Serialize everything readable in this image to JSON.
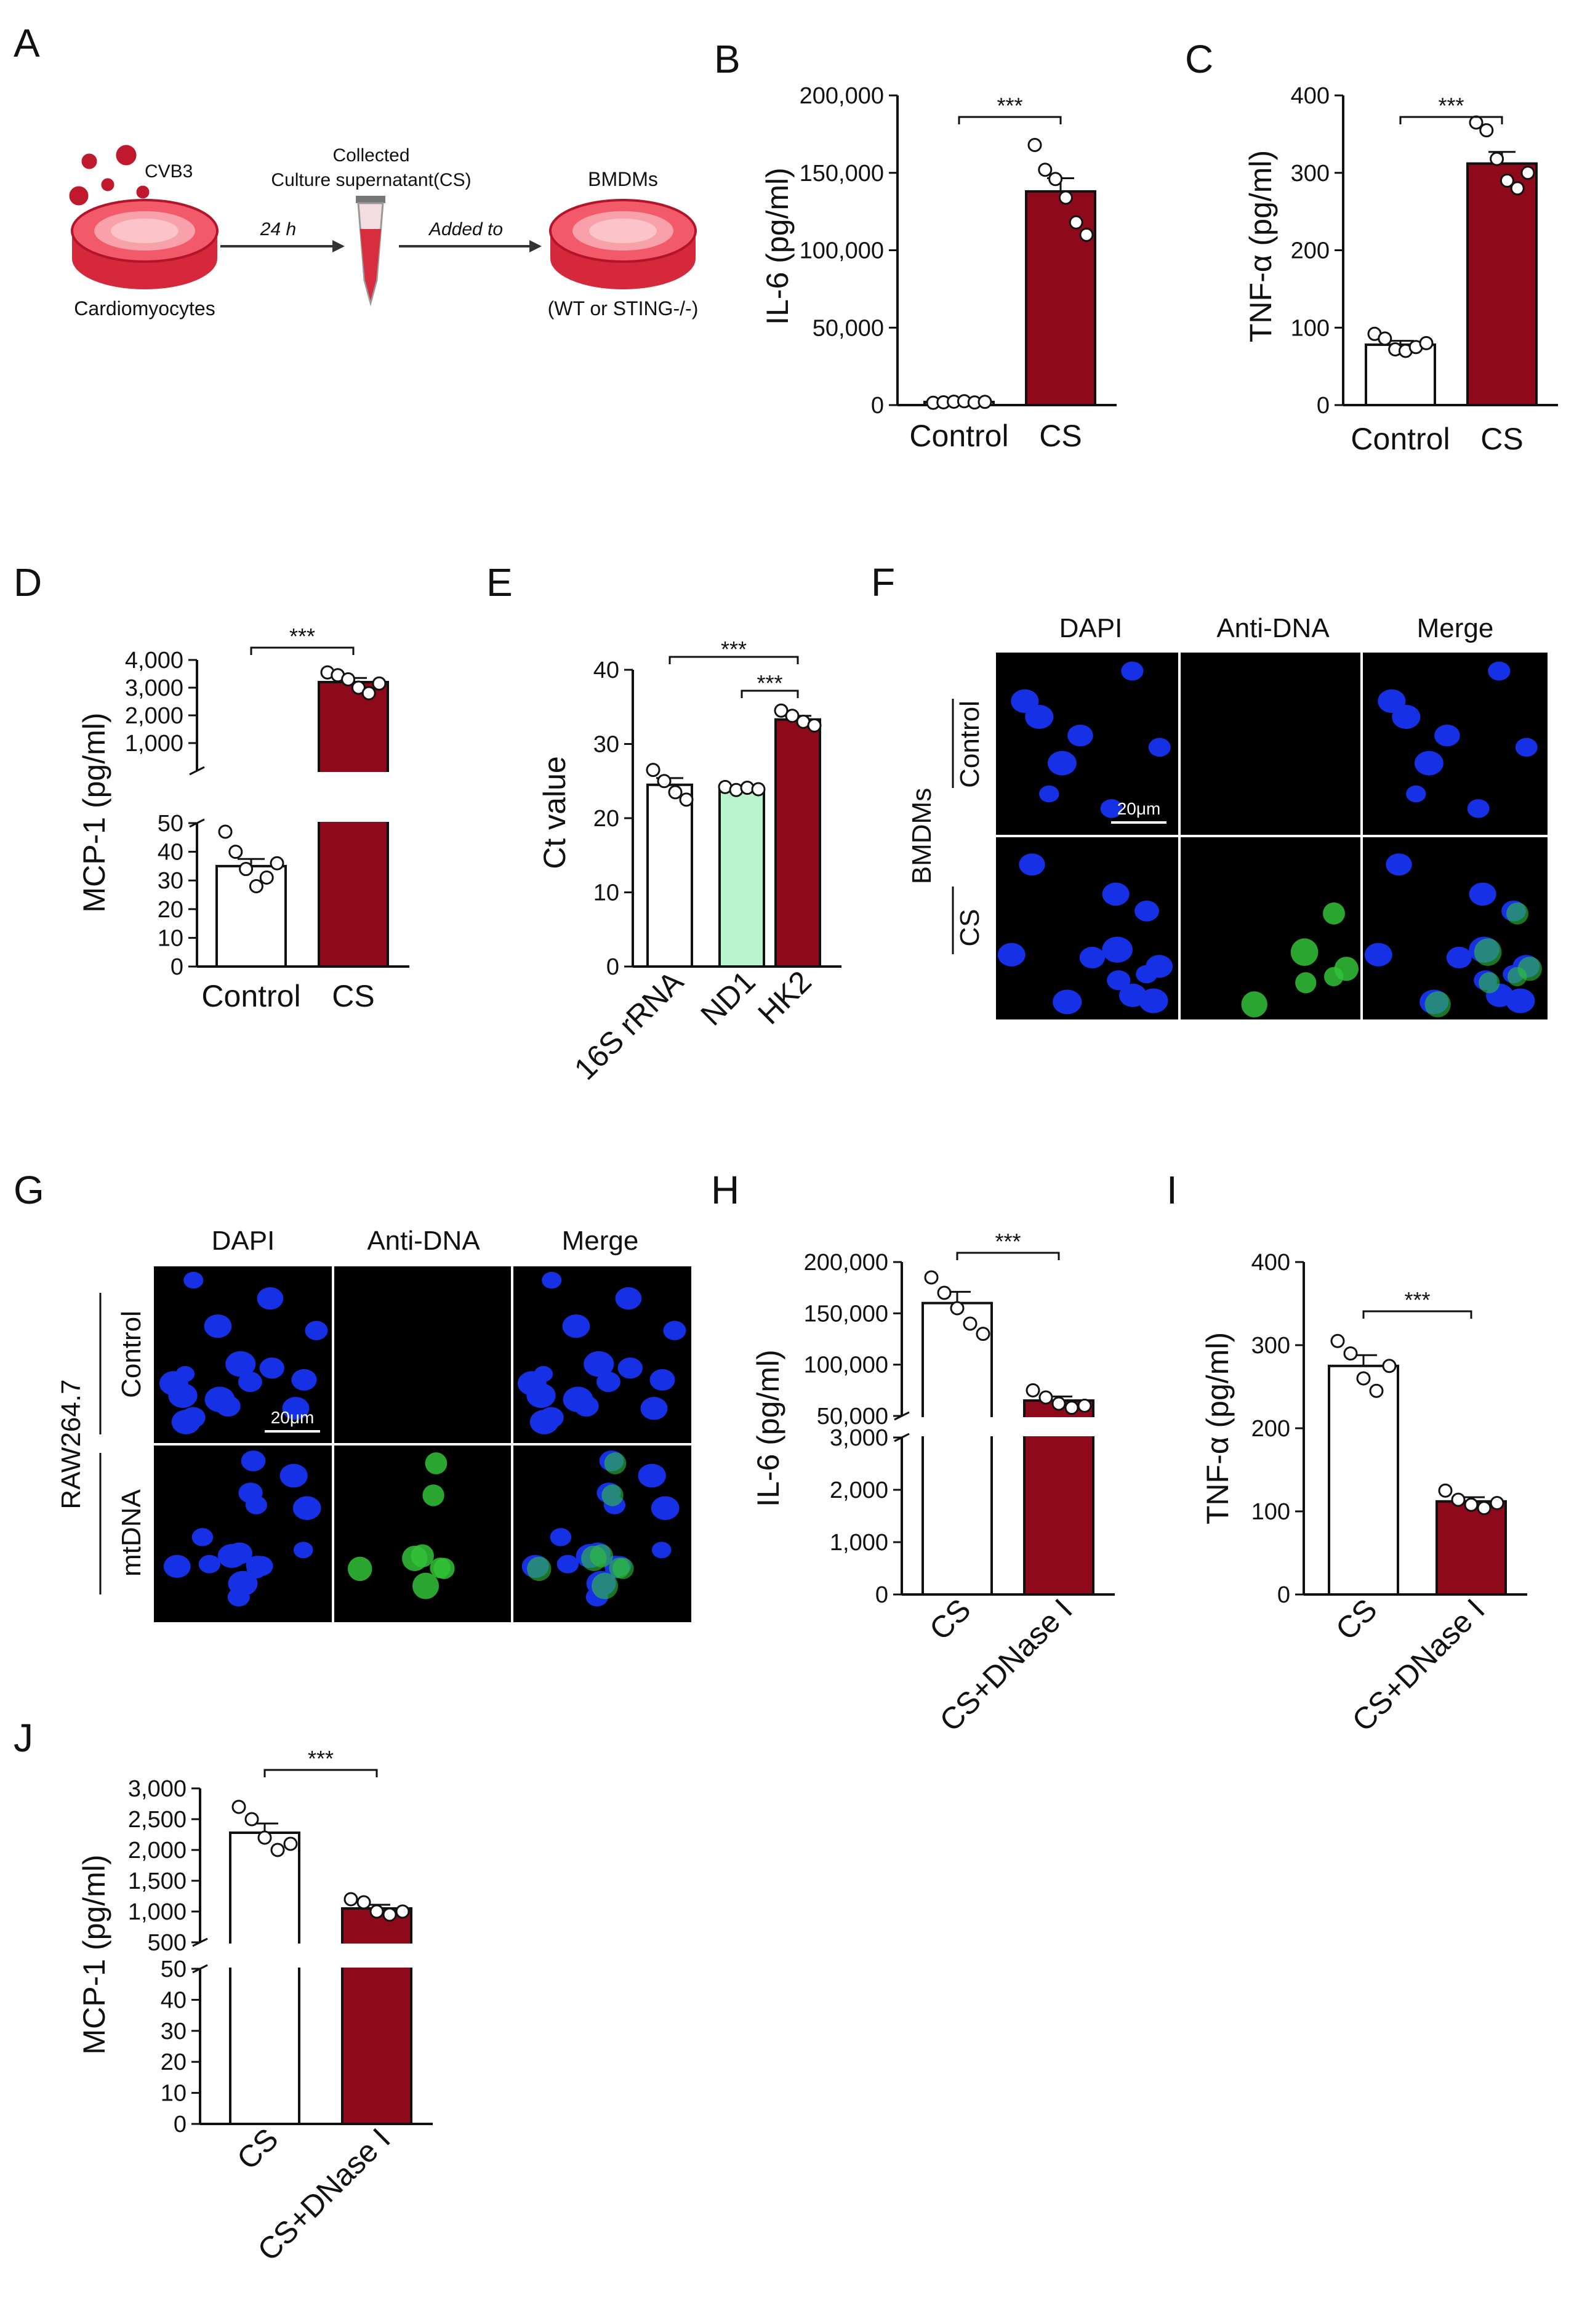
{
  "figure": {
    "colors": {
      "control": "#ffffff",
      "cs": "#8e0a1b",
      "nd1": "#b8f5cf",
      "axis": "#111111",
      "dapi": "#1630e6",
      "antidna": "#31c238",
      "divider": "#ffffff"
    },
    "panel_letters": [
      "A",
      "B",
      "C",
      "D",
      "E",
      "F",
      "G",
      "H",
      "I",
      "J"
    ],
    "schematic": {
      "virus": "CVB3",
      "cardiomyocytes": "Cardiomyocytes",
      "time": "24 h",
      "collected_line1": "Collected",
      "collected_line2": "Culture supernatant(CS)",
      "added": "Added to",
      "bmdms": "BMDMs",
      "genotype": "(WT or STING-/-)"
    },
    "panel_F": {
      "columns": [
        "DAPI",
        "Anti-DNA",
        "Merge"
      ],
      "rows": [
        "Control",
        "CS"
      ],
      "cell_type": "BMDMs",
      "scale": "20μm"
    },
    "panel_G": {
      "columns": [
        "DAPI",
        "Anti-DNA",
        "Merge"
      ],
      "rows": [
        "Control",
        "mtDNA"
      ],
      "cell_type": "RAW264.7",
      "scale": "20μm"
    }
  },
  "chart_data": [
    {
      "panel": "B",
      "type": "bar",
      "ylabel": "IL-6 (pg/ml)",
      "categories": [
        "Control",
        "CS"
      ],
      "values": [
        2000,
        138000
      ],
      "sem": [
        300,
        8500
      ],
      "points": [
        [
          1500,
          1800,
          2200,
          2500,
          1700,
          2100
        ],
        [
          168000,
          152000,
          146000,
          134000,
          118000,
          110000
        ]
      ],
      "ylim": [
        0,
        200000
      ],
      "yticks": [
        0,
        50000,
        100000,
        150000,
        200000
      ],
      "yticklabels": [
        "0",
        "50,000",
        "100,000",
        "150,000",
        "200,000"
      ],
      "significance": [
        {
          "from": 0,
          "to": 1,
          "label": "***"
        }
      ]
    },
    {
      "panel": "C",
      "type": "bar",
      "ylabel": "TNF-α (pg/ml)",
      "categories": [
        "Control",
        "CS"
      ],
      "values": [
        78,
        312
      ],
      "sem": [
        5,
        15
      ],
      "points": [
        [
          92,
          86,
          72,
          70,
          75,
          80
        ],
        [
          365,
          355,
          318,
          290,
          280,
          300
        ]
      ],
      "ylim": [
        0,
        400
      ],
      "yticks": [
        0,
        100,
        200,
        300,
        400
      ],
      "yticklabels": [
        "0",
        "100",
        "200",
        "300",
        "400"
      ],
      "significance": [
        {
          "from": 0,
          "to": 1,
          "label": "***"
        }
      ]
    },
    {
      "panel": "D",
      "type": "bar",
      "ylabel": "MCP-1 (pg/ml)",
      "broken_axis": true,
      "categories": [
        "Control",
        "CS"
      ],
      "values": [
        35,
        3200
      ],
      "sem": [
        2.5,
        150
      ],
      "points": [
        [
          47,
          40,
          34,
          28,
          31,
          36
        ],
        [
          3550,
          3450,
          3300,
          3000,
          2800,
          3150
        ]
      ],
      "lower_ylim": [
        0,
        50
      ],
      "lower_yticks": [
        0,
        10,
        20,
        30,
        40,
        50
      ],
      "upper_ylim": [
        0,
        4000
      ],
      "upper_yticks": [
        1000,
        2000,
        3000,
        4000
      ],
      "significance": [
        {
          "from": 0,
          "to": 1,
          "label": "***"
        }
      ]
    },
    {
      "panel": "E",
      "type": "bar",
      "ylabel": "Ct value",
      "categories": [
        "16S rRNA",
        "ND1",
        "HK2"
      ],
      "values": [
        24.5,
        24,
        33.3
      ],
      "sem": [
        0.9,
        0.3,
        0.5
      ],
      "points": [
        [
          26.5,
          25,
          23.5,
          22.5
        ],
        [
          24.2,
          23.8,
          24.1,
          23.9
        ],
        [
          34.5,
          33.8,
          33,
          32.5
        ]
      ],
      "ylim": [
        0,
        40
      ],
      "yticks": [
        0,
        10,
        20,
        30,
        40
      ],
      "yticklabels": [
        "0",
        "10",
        "20",
        "30",
        "40"
      ],
      "significance": [
        {
          "from": 0,
          "to": 2,
          "label": "***"
        },
        {
          "from": 1,
          "to": 2,
          "label": "***"
        }
      ]
    },
    {
      "panel": "H",
      "type": "bar",
      "ylabel": "IL-6 (pg/ml)",
      "broken_axis": true,
      "categories": [
        "CS",
        "CS+DNase I"
      ],
      "values": [
        160000,
        65000
      ],
      "sem": [
        11000,
        4000
      ],
      "points": [
        [
          185000,
          170000,
          155000,
          140000,
          130000
        ],
        [
          75000,
          68000,
          62000,
          58000,
          60000
        ]
      ],
      "lower_ylim": [
        0,
        3000
      ],
      "lower_yticks": [
        0,
        1000,
        2000,
        3000
      ],
      "upper_ylim": [
        50000,
        200000
      ],
      "upper_yticks": [
        50000,
        100000,
        150000,
        200000
      ],
      "upper_yticklabels": [
        "50,000",
        "100,000",
        "150,000",
        "200,000"
      ],
      "significance": [
        {
          "from": 0,
          "to": 1,
          "label": "***"
        }
      ]
    },
    {
      "panel": "I",
      "type": "bar",
      "ylabel": "TNF-α (pg/ml)",
      "categories": [
        "CS",
        "CS+DNase I"
      ],
      "values": [
        275,
        112
      ],
      "sem": [
        13,
        5
      ],
      "points": [
        [
          305,
          290,
          260,
          245,
          275
        ],
        [
          125,
          114,
          108,
          104,
          110
        ]
      ],
      "ylim": [
        0,
        400
      ],
      "yticks": [
        0,
        100,
        200,
        300,
        400
      ],
      "yticklabels": [
        "0",
        "100",
        "200",
        "300",
        "400"
      ],
      "significance": [
        {
          "from": 0,
          "to": 1,
          "label": "***"
        }
      ]
    },
    {
      "panel": "J",
      "type": "bar",
      "ylabel": "MCP-1 (pg/ml)",
      "broken_axis": true,
      "categories": [
        "CS",
        "CS+DNase I"
      ],
      "values": [
        2280,
        1050
      ],
      "sem": [
        150,
        60
      ],
      "points": [
        [
          2700,
          2500,
          2200,
          2000,
          2100
        ],
        [
          1200,
          1150,
          1000,
          950,
          1000
        ]
      ],
      "lower_ylim": [
        0,
        50
      ],
      "lower_yticks": [
        0,
        10,
        20,
        30,
        40,
        50
      ],
      "upper_ylim": [
        500,
        3000
      ],
      "upper_yticks": [
        500,
        1000,
        1500,
        2000,
        2500,
        3000
      ],
      "significance": [
        {
          "from": 0,
          "to": 1,
          "label": "***"
        }
      ]
    }
  ]
}
